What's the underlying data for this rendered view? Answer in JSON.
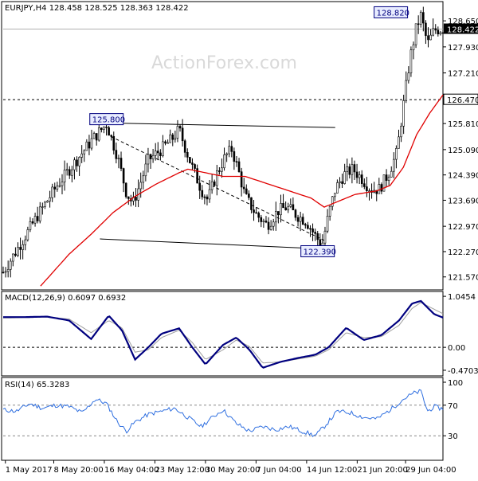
{
  "watermark": "ActionForex.com",
  "colors": {
    "candle": "#000000",
    "ma": "#e00000",
    "macd_line": "#00007f",
    "macd_signal": "#9e9e9e",
    "rsi_line": "#2f6fe0",
    "label_box_border": "#00007f",
    "label_box_fill": "#e8ecff"
  },
  "chart_data": [
    {
      "type": "candlestick",
      "title": "EURJPY,H4  128.458 128.525 128.363 128.422",
      "ylim": [
        121.3,
        129.05
      ],
      "y_ticks": [
        "128.650",
        "127.930",
        "127.210",
        "126.470",
        "125.810",
        "125.090",
        "124.390",
        "123.690",
        "122.970",
        "122.270",
        "121.570"
      ],
      "current_price_label": "128.422",
      "hline_label": "126.470",
      "annotations": [
        {
          "text": "128.820",
          "x": 0.925,
          "y": 128.82
        },
        {
          "text": "125.800",
          "x": 0.235,
          "y": 125.8
        },
        {
          "text": "122.390",
          "x": 0.715,
          "y": 122.39
        }
      ],
      "trendlines": [
        {
          "x1": 0.22,
          "y1": 125.83,
          "x2": 0.755,
          "y2": 125.7
        },
        {
          "x1": 0.22,
          "y1": 122.62,
          "x2": 0.755,
          "y2": 122.33
        },
        {
          "x1": 0.245,
          "y1": 125.45,
          "x2": 0.735,
          "y2": 122.55
        }
      ],
      "price_path": [
        [
          0.0,
          121.7
        ],
        [
          0.04,
          122.5
        ],
        [
          0.08,
          123.3
        ],
        [
          0.12,
          124.05
        ],
        [
          0.17,
          124.85
        ],
        [
          0.205,
          125.4
        ],
        [
          0.235,
          125.8
        ],
        [
          0.26,
          124.9
        ],
        [
          0.28,
          123.9
        ],
        [
          0.295,
          123.6
        ],
        [
          0.31,
          124.1
        ],
        [
          0.33,
          124.8
        ],
        [
          0.36,
          125.1
        ],
        [
          0.385,
          125.4
        ],
        [
          0.4,
          125.65
        ],
        [
          0.415,
          125.1
        ],
        [
          0.43,
          124.6
        ],
        [
          0.45,
          124.0
        ],
        [
          0.465,
          123.7
        ],
        [
          0.485,
          124.4
        ],
        [
          0.505,
          124.9
        ],
        [
          0.52,
          125.1
        ],
        [
          0.535,
          124.5
        ],
        [
          0.55,
          123.8
        ],
        [
          0.575,
          123.3
        ],
        [
          0.6,
          123.0
        ],
        [
          0.625,
          123.4
        ],
        [
          0.645,
          123.5
        ],
        [
          0.665,
          123.3
        ],
        [
          0.69,
          123.1
        ],
        [
          0.71,
          122.7
        ],
        [
          0.725,
          122.45
        ],
        [
          0.74,
          123.3
        ],
        [
          0.755,
          124.0
        ],
        [
          0.775,
          124.4
        ],
        [
          0.795,
          124.55
        ],
        [
          0.815,
          124.3
        ],
        [
          0.835,
          124.0
        ],
        [
          0.855,
          124.0
        ],
        [
          0.875,
          124.4
        ],
        [
          0.895,
          125.0
        ],
        [
          0.91,
          126.3
        ],
        [
          0.925,
          127.6
        ],
        [
          0.94,
          128.5
        ],
        [
          0.95,
          128.8
        ],
        [
          0.965,
          128.0
        ],
        [
          0.98,
          128.4
        ],
        [
          1.0,
          128.42
        ]
      ],
      "moving_average": [
        [
          0.0,
          120.6
        ],
        [
          0.08,
          121.25
        ],
        [
          0.15,
          122.2
        ],
        [
          0.2,
          122.75
        ],
        [
          0.25,
          123.35
        ],
        [
          0.3,
          123.8
        ],
        [
          0.35,
          124.15
        ],
        [
          0.4,
          124.45
        ],
        [
          0.42,
          124.55
        ],
        [
          0.46,
          124.45
        ],
        [
          0.5,
          124.35
        ],
        [
          0.55,
          124.35
        ],
        [
          0.6,
          124.15
        ],
        [
          0.65,
          123.95
        ],
        [
          0.7,
          123.75
        ],
        [
          0.73,
          123.5
        ],
        [
          0.76,
          123.65
        ],
        [
          0.8,
          123.85
        ],
        [
          0.85,
          123.95
        ],
        [
          0.88,
          124.1
        ],
        [
          0.91,
          124.6
        ],
        [
          0.94,
          125.5
        ],
        [
          0.97,
          126.1
        ],
        [
          1.0,
          126.6
        ]
      ]
    },
    {
      "type": "line",
      "title": "MACD(12,26,9) 0.6097 0.6932",
      "ylim": [
        -0.52,
        1.08
      ],
      "y_ticks": [
        "1.0454",
        "0.00",
        "-0.4703"
      ],
      "zero_line": 0,
      "series": [
        {
          "name": "MACD",
          "values": [
            [
              0.0,
              0.62
            ],
            [
              0.05,
              0.62
            ],
            [
              0.1,
              0.63
            ],
            [
              0.15,
              0.55
            ],
            [
              0.2,
              0.17
            ],
            [
              0.24,
              0.65
            ],
            [
              0.27,
              0.35
            ],
            [
              0.3,
              -0.25
            ],
            [
              0.33,
              0.0
            ],
            [
              0.36,
              0.28
            ],
            [
              0.4,
              0.39
            ],
            [
              0.43,
              0.0
            ],
            [
              0.46,
              -0.35
            ],
            [
              0.5,
              0.05
            ],
            [
              0.53,
              0.2
            ],
            [
              0.56,
              -0.05
            ],
            [
              0.59,
              -0.42
            ],
            [
              0.63,
              -0.3
            ],
            [
              0.67,
              -0.22
            ],
            [
              0.71,
              -0.15
            ],
            [
              0.74,
              0.0
            ],
            [
              0.78,
              0.4
            ],
            [
              0.82,
              0.15
            ],
            [
              0.86,
              0.25
            ],
            [
              0.9,
              0.55
            ],
            [
              0.93,
              0.9
            ],
            [
              0.95,
              0.95
            ],
            [
              0.98,
              0.68
            ],
            [
              1.0,
              0.61
            ]
          ]
        },
        {
          "name": "Signal",
          "values": [
            [
              0.0,
              0.6
            ],
            [
              0.05,
              0.61
            ],
            [
              0.1,
              0.62
            ],
            [
              0.15,
              0.58
            ],
            [
              0.2,
              0.3
            ],
            [
              0.24,
              0.55
            ],
            [
              0.27,
              0.4
            ],
            [
              0.3,
              -0.1
            ],
            [
              0.33,
              -0.05
            ],
            [
              0.36,
              0.2
            ],
            [
              0.4,
              0.35
            ],
            [
              0.43,
              0.1
            ],
            [
              0.46,
              -0.25
            ],
            [
              0.5,
              -0.05
            ],
            [
              0.53,
              0.15
            ],
            [
              0.56,
              0.02
            ],
            [
              0.59,
              -0.32
            ],
            [
              0.63,
              -0.3
            ],
            [
              0.67,
              -0.24
            ],
            [
              0.71,
              -0.18
            ],
            [
              0.74,
              -0.05
            ],
            [
              0.78,
              0.3
            ],
            [
              0.82,
              0.2
            ],
            [
              0.86,
              0.22
            ],
            [
              0.9,
              0.45
            ],
            [
              0.93,
              0.8
            ],
            [
              0.95,
              0.92
            ],
            [
              0.98,
              0.78
            ],
            [
              1.0,
              0.69
            ]
          ]
        }
      ]
    },
    {
      "type": "line",
      "title": "RSI(14) 65.3283",
      "ylim": [
        0,
        100
      ],
      "y_ticks": [
        "100",
        "70",
        "30",
        "0"
      ],
      "levels": [
        70,
        30
      ],
      "series": [
        {
          "name": "RSI",
          "values": [
            [
              0.0,
              64
            ],
            [
              0.03,
              62
            ],
            [
              0.06,
              72
            ],
            [
              0.09,
              66
            ],
            [
              0.12,
              70
            ],
            [
              0.15,
              68
            ],
            [
              0.18,
              60
            ],
            [
              0.21,
              78
            ],
            [
              0.235,
              72
            ],
            [
              0.26,
              48
            ],
            [
              0.28,
              36
            ],
            [
              0.3,
              48
            ],
            [
              0.33,
              58
            ],
            [
              0.36,
              62
            ],
            [
              0.39,
              66
            ],
            [
              0.42,
              54
            ],
            [
              0.45,
              42
            ],
            [
              0.48,
              56
            ],
            [
              0.5,
              64
            ],
            [
              0.53,
              46
            ],
            [
              0.56,
              36
            ],
            [
              0.59,
              42
            ],
            [
              0.62,
              38
            ],
            [
              0.65,
              42
            ],
            [
              0.68,
              36
            ],
            [
              0.71,
              30
            ],
            [
              0.73,
              42
            ],
            [
              0.76,
              62
            ],
            [
              0.79,
              60
            ],
            [
              0.82,
              54
            ],
            [
              0.85,
              52
            ],
            [
              0.88,
              64
            ],
            [
              0.91,
              78
            ],
            [
              0.935,
              86
            ],
            [
              0.95,
              88
            ],
            [
              0.965,
              62
            ],
            [
              0.98,
              68
            ],
            [
              1.0,
              65
            ]
          ]
        }
      ]
    }
  ],
  "x_axis": {
    "labels": [
      "1 May 2017",
      "8 May 20:00",
      "16 May 04:00",
      "23 May 12:00",
      "30 May 20:00",
      "7 Jun 04:00",
      "14 Jun 12:00",
      "21 Jun 20:00",
      "29 Jun 04:00"
    ],
    "label_positions": [
      0.005,
      0.115,
      0.23,
      0.345,
      0.46,
      0.575,
      0.69,
      0.805,
      0.915
    ]
  }
}
